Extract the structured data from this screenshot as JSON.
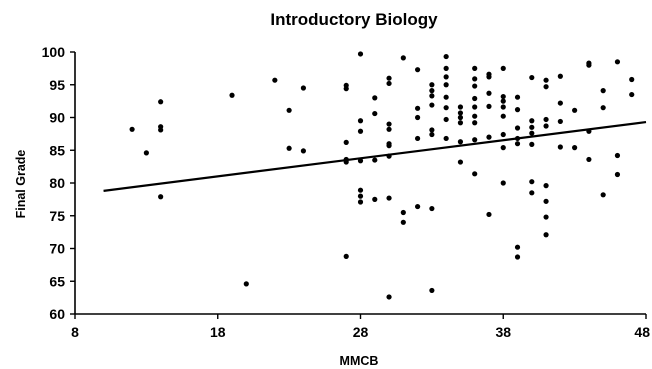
{
  "chart_data": {
    "type": "scatter",
    "title": "Introductory Biology",
    "xlabel": "MMCB",
    "ylabel": "Final Grade",
    "xlim": [
      8,
      48
    ],
    "ylim": [
      60,
      100
    ],
    "x_ticks": [
      "8",
      "18",
      "28",
      "38",
      "48"
    ],
    "y_ticks": [
      "60",
      "65",
      "70",
      "75",
      "80",
      "85",
      "90",
      "95",
      "100"
    ],
    "grid": false,
    "legend": "none",
    "colors": {
      "points": "#000000",
      "trendline": "#000000",
      "axes": "#000000"
    },
    "trendline": {
      "x": [
        10,
        48
      ],
      "y": [
        78.8,
        89.3
      ]
    },
    "points": [
      [
        12,
        88.2
      ],
      [
        13,
        84.6
      ],
      [
        14,
        92.4
      ],
      [
        14,
        88.6
      ],
      [
        14,
        88.1
      ],
      [
        14,
        77.9
      ],
      [
        19,
        93.4
      ],
      [
        20,
        64.6
      ],
      [
        22,
        95.7
      ],
      [
        23,
        91.1
      ],
      [
        23,
        85.3
      ],
      [
        24,
        94.5
      ],
      [
        24,
        84.9
      ],
      [
        27,
        94.9
      ],
      [
        27,
        94.4
      ],
      [
        27,
        86.2
      ],
      [
        27,
        83.6
      ],
      [
        27,
        83.2
      ],
      [
        27,
        68.8
      ],
      [
        28,
        99.7
      ],
      [
        28,
        89.5
      ],
      [
        28,
        87.9
      ],
      [
        28,
        83.4
      ],
      [
        28,
        78.9
      ],
      [
        28,
        78.0
      ],
      [
        28,
        77.1
      ],
      [
        29,
        93.0
      ],
      [
        29,
        90.6
      ],
      [
        29,
        83.5
      ],
      [
        29,
        77.5
      ],
      [
        30,
        96.0
      ],
      [
        30,
        95.2
      ],
      [
        30,
        89.0
      ],
      [
        30,
        88.2
      ],
      [
        30,
        86.0
      ],
      [
        30,
        85.7
      ],
      [
        30,
        84.1
      ],
      [
        30,
        77.7
      ],
      [
        30,
        62.6
      ],
      [
        31,
        99.1
      ],
      [
        31,
        75.5
      ],
      [
        31,
        74.0
      ],
      [
        32,
        97.3
      ],
      [
        32,
        91.4
      ],
      [
        32,
        90.0
      ],
      [
        32,
        86.8
      ],
      [
        32,
        76.4
      ],
      [
        33,
        95.0
      ],
      [
        33,
        94.1
      ],
      [
        33,
        93.3
      ],
      [
        33,
        91.9
      ],
      [
        33,
        88.1
      ],
      [
        33,
        87.4
      ],
      [
        33,
        76.1
      ],
      [
        33,
        63.6
      ],
      [
        34,
        99.3
      ],
      [
        34,
        97.5
      ],
      [
        34,
        96.2
      ],
      [
        34,
        95.0
      ],
      [
        34,
        93.1
      ],
      [
        34,
        91.5
      ],
      [
        34,
        89.7
      ],
      [
        34,
        86.8
      ],
      [
        35,
        91.6
      ],
      [
        35,
        90.7
      ],
      [
        35,
        90.0
      ],
      [
        35,
        89.2
      ],
      [
        35,
        86.3
      ],
      [
        35,
        83.2
      ],
      [
        36,
        97.5
      ],
      [
        36,
        95.9
      ],
      [
        36,
        94.8
      ],
      [
        36,
        92.9
      ],
      [
        36,
        91.6
      ],
      [
        36,
        90.2
      ],
      [
        36,
        89.2
      ],
      [
        36,
        86.6
      ],
      [
        36,
        81.4
      ],
      [
        37,
        96.6
      ],
      [
        37,
        96.2
      ],
      [
        37,
        93.7
      ],
      [
        37,
        91.7
      ],
      [
        37,
        87.0
      ],
      [
        37,
        75.2
      ],
      [
        38,
        97.5
      ],
      [
        38,
        93.2
      ],
      [
        38,
        92.5
      ],
      [
        38,
        91.6
      ],
      [
        38,
        90.2
      ],
      [
        38,
        87.4
      ],
      [
        38,
        85.4
      ],
      [
        38,
        80.0
      ],
      [
        39,
        93.1
      ],
      [
        39,
        91.2
      ],
      [
        39,
        88.4
      ],
      [
        39,
        86.8
      ],
      [
        39,
        86.0
      ],
      [
        39,
        70.2
      ],
      [
        39,
        68.7
      ],
      [
        40,
        96.1
      ],
      [
        40,
        89.5
      ],
      [
        40,
        88.5
      ],
      [
        40,
        87.6
      ],
      [
        40,
        85.9
      ],
      [
        40,
        80.2
      ],
      [
        40,
        78.5
      ],
      [
        41,
        95.7
      ],
      [
        41,
        94.7
      ],
      [
        41,
        89.7
      ],
      [
        41,
        88.7
      ],
      [
        41,
        79.6
      ],
      [
        41,
        77.2
      ],
      [
        41,
        74.8
      ],
      [
        41,
        72.1
      ],
      [
        42,
        96.3
      ],
      [
        42,
        92.2
      ],
      [
        42,
        89.4
      ],
      [
        42,
        85.5
      ],
      [
        43,
        91.1
      ],
      [
        43,
        85.4
      ],
      [
        44,
        98.3
      ],
      [
        44,
        98.0
      ],
      [
        44,
        87.9
      ],
      [
        44,
        83.6
      ],
      [
        45,
        94.1
      ],
      [
        45,
        91.5
      ],
      [
        45,
        78.2
      ],
      [
        46,
        98.5
      ],
      [
        46,
        84.2
      ],
      [
        46,
        81.3
      ],
      [
        47,
        95.8
      ],
      [
        47,
        93.5
      ]
    ]
  }
}
